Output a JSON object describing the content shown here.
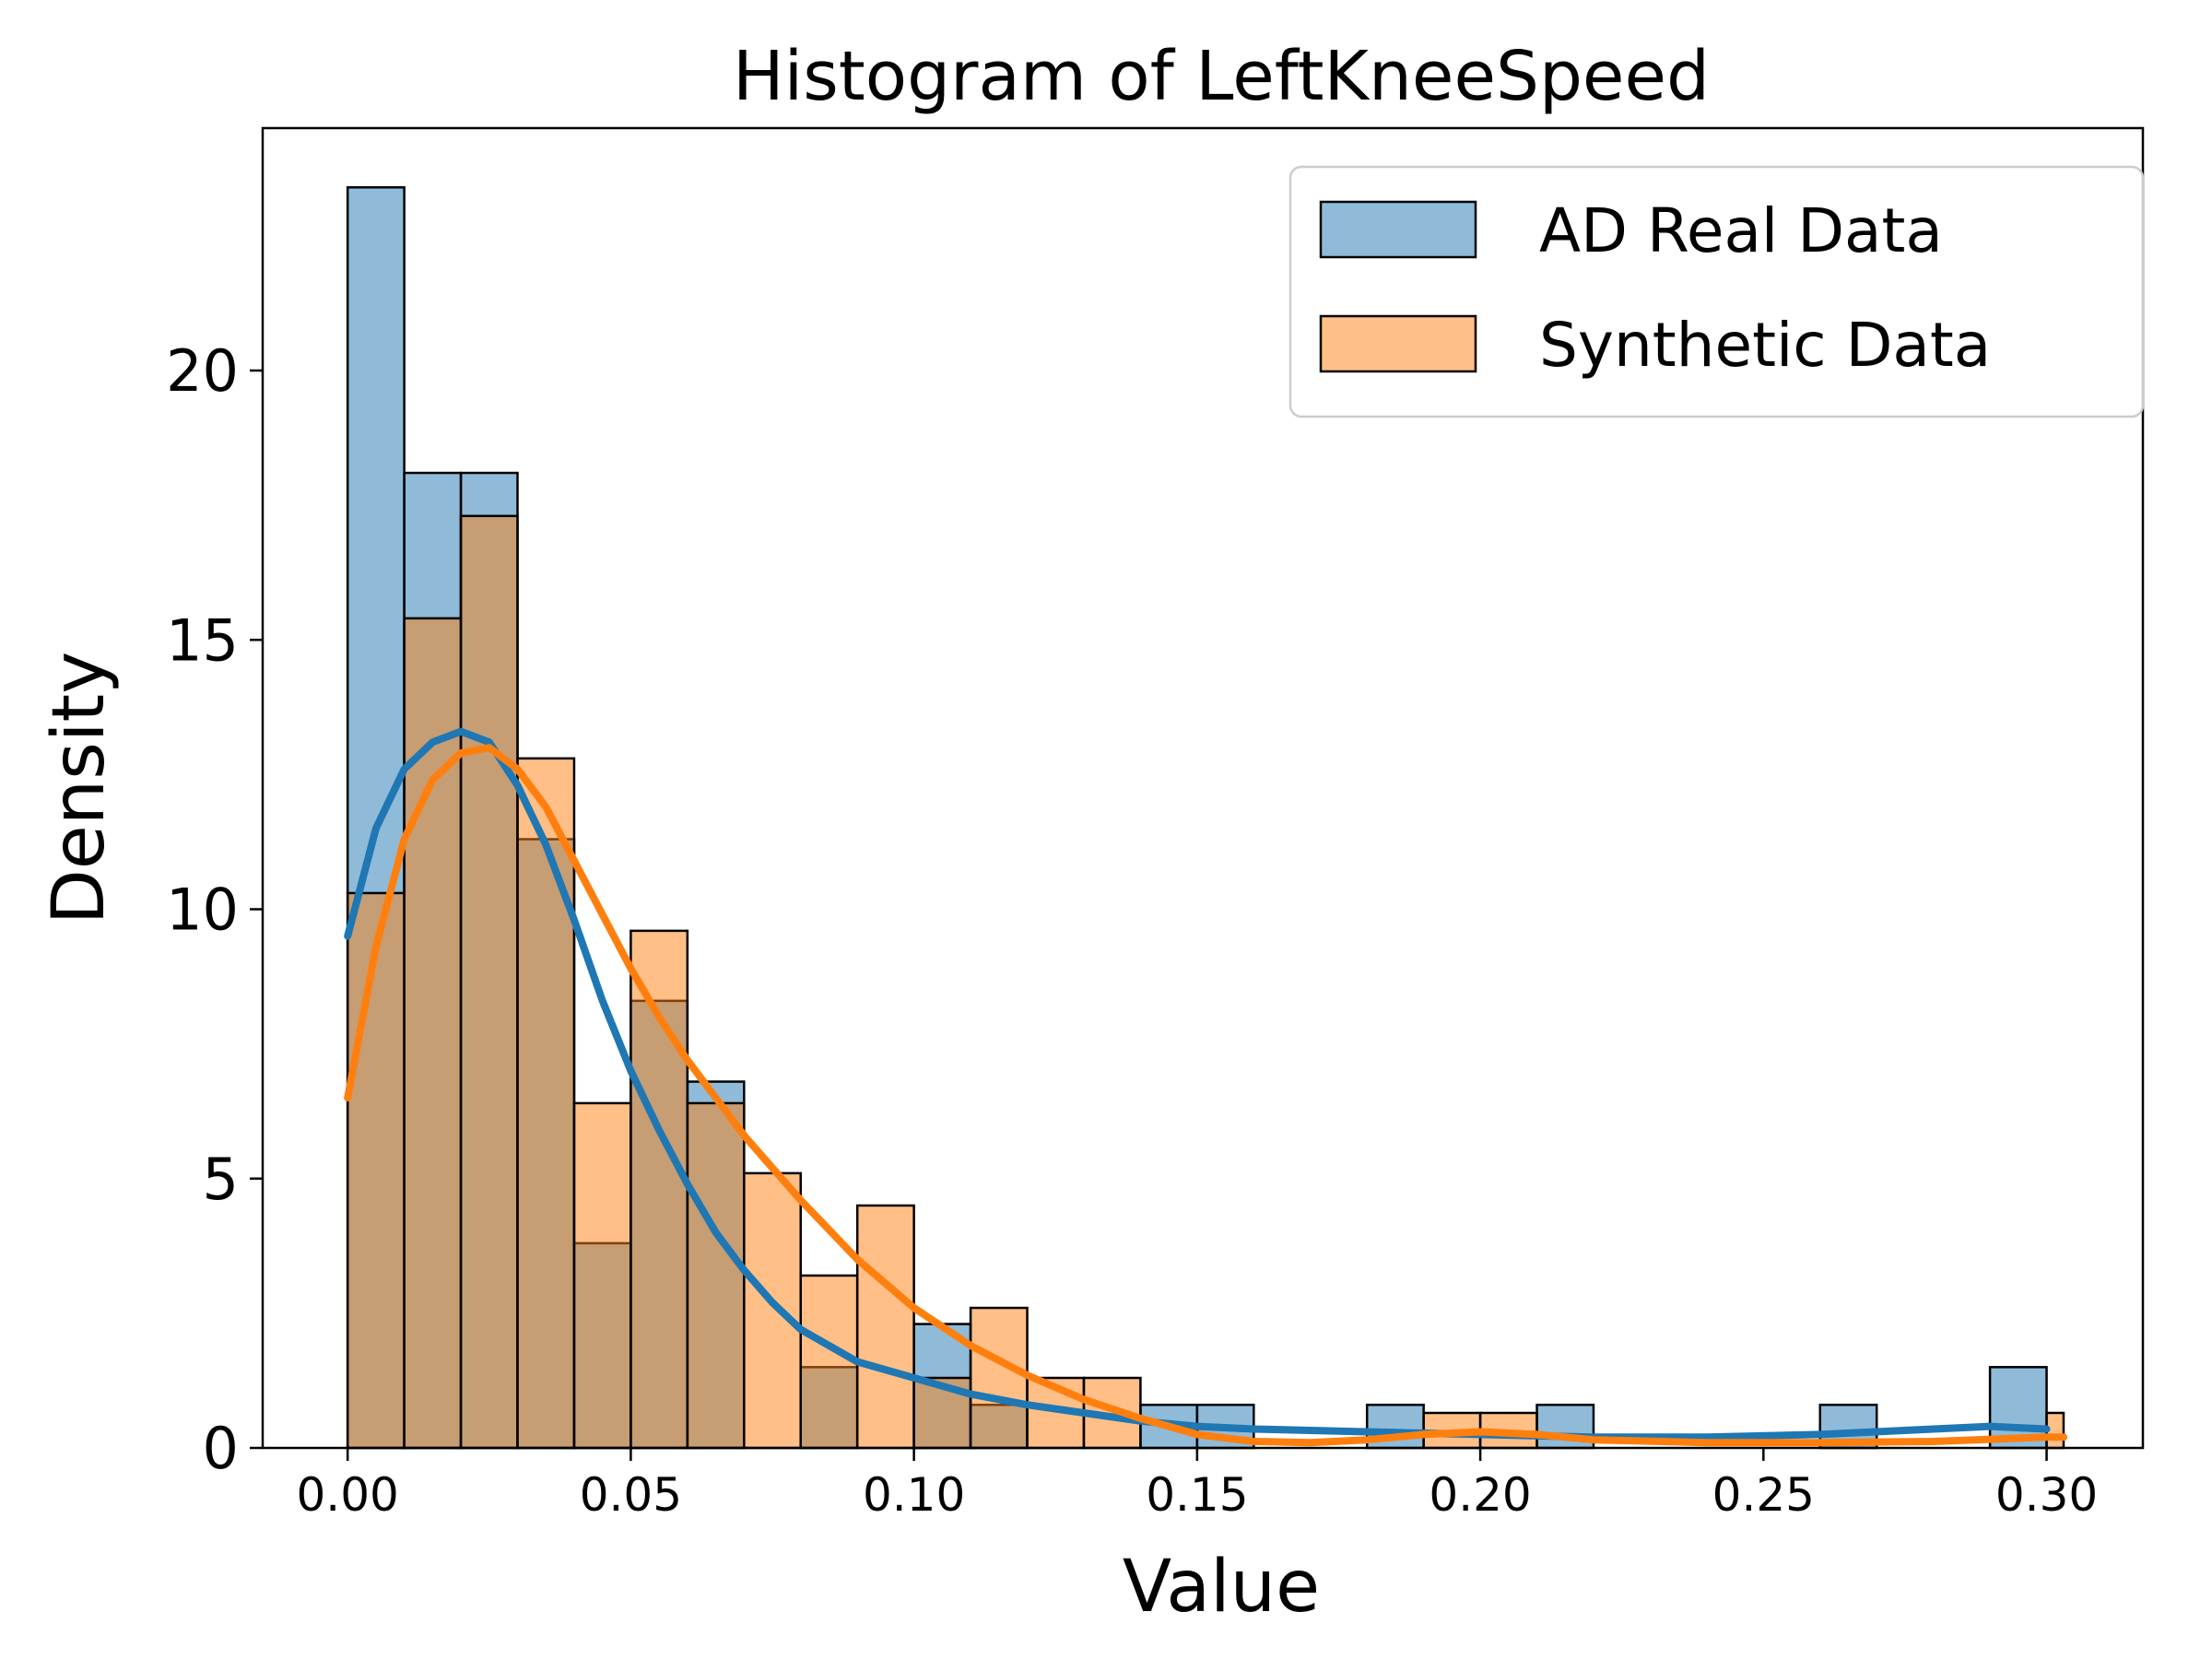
{
  "chart_data": {
    "type": "bar",
    "title": "Histogram of LeftKneeSpeed",
    "xlabel": "Value",
    "ylabel": "Density",
    "xlim": [
      -0.015,
      0.317
    ],
    "ylim": [
      0,
      24.5
    ],
    "xticks": [
      0.0,
      0.05,
      0.1,
      0.15,
      0.2,
      0.25,
      0.3
    ],
    "xtick_labels": [
      "0.00",
      "0.05",
      "0.10",
      "0.15",
      "0.20",
      "0.25",
      "0.30"
    ],
    "yticks": [
      0,
      5,
      10,
      15,
      20
    ],
    "ytick_labels": [
      "0",
      "5",
      "10",
      "15",
      "20"
    ],
    "grid": false,
    "legend_position": "top-right",
    "series": [
      {
        "name": "AD Real Data",
        "color": "#1f77b4",
        "bin_edges": [
          0.0,
          0.01,
          0.02,
          0.03,
          0.04,
          0.05,
          0.06,
          0.07,
          0.08,
          0.09,
          0.1,
          0.11,
          0.12,
          0.13,
          0.14,
          0.15,
          0.16,
          0.17,
          0.18,
          0.19,
          0.2,
          0.21,
          0.22,
          0.23,
          0.24,
          0.25,
          0.26,
          0.27,
          0.28,
          0.29,
          0.3
        ],
        "values": [
          23.4,
          18.1,
          18.1,
          11.3,
          3.8,
          8.3,
          6.8,
          0,
          1.5,
          0,
          2.3,
          0.8,
          0,
          0,
          0.8,
          0.8,
          0,
          0,
          0.8,
          0,
          0,
          0.8,
          0,
          0,
          0,
          0,
          0.8,
          0,
          0,
          1.5
        ],
        "kde": [
          [
            0.0,
            9.5
          ],
          [
            0.005,
            11.5
          ],
          [
            0.01,
            12.6
          ],
          [
            0.015,
            13.1
          ],
          [
            0.02,
            13.3
          ],
          [
            0.025,
            13.1
          ],
          [
            0.03,
            12.3
          ],
          [
            0.035,
            11.2
          ],
          [
            0.04,
            9.8
          ],
          [
            0.045,
            8.3
          ],
          [
            0.05,
            7.0
          ],
          [
            0.055,
            5.9
          ],
          [
            0.06,
            4.9
          ],
          [
            0.065,
            4.0
          ],
          [
            0.07,
            3.3
          ],
          [
            0.075,
            2.7
          ],
          [
            0.08,
            2.2
          ],
          [
            0.09,
            1.6
          ],
          [
            0.1,
            1.3
          ],
          [
            0.11,
            1.0
          ],
          [
            0.12,
            0.8
          ],
          [
            0.13,
            0.65
          ],
          [
            0.14,
            0.5
          ],
          [
            0.15,
            0.4
          ],
          [
            0.16,
            0.35
          ],
          [
            0.18,
            0.3
          ],
          [
            0.2,
            0.25
          ],
          [
            0.22,
            0.2
          ],
          [
            0.24,
            0.2
          ],
          [
            0.26,
            0.25
          ],
          [
            0.28,
            0.35
          ],
          [
            0.29,
            0.4
          ],
          [
            0.3,
            0.35
          ]
        ]
      },
      {
        "name": "Synthetic Data",
        "color": "#ff7f0e",
        "bin_edges": [
          0.0,
          0.01,
          0.02,
          0.03,
          0.04,
          0.05,
          0.06,
          0.07,
          0.08,
          0.09,
          0.1,
          0.11,
          0.12,
          0.13,
          0.14,
          0.15,
          0.16,
          0.17,
          0.18,
          0.19,
          0.2,
          0.21,
          0.22,
          0.23,
          0.24,
          0.25,
          0.26,
          0.27,
          0.28,
          0.29,
          0.3,
          0.303
        ],
        "values": [
          10.3,
          15.4,
          17.3,
          12.8,
          6.4,
          9.6,
          6.4,
          5.1,
          3.2,
          4.5,
          1.3,
          2.6,
          1.3,
          1.3,
          0,
          0,
          0,
          0,
          0,
          0.65,
          0.65,
          0,
          0,
          0,
          0,
          0,
          0,
          0,
          0,
          0,
          0.65
        ],
        "kde": [
          [
            0.0,
            6.5
          ],
          [
            0.005,
            9.3
          ],
          [
            0.01,
            11.3
          ],
          [
            0.015,
            12.4
          ],
          [
            0.02,
            12.9
          ],
          [
            0.025,
            13.0
          ],
          [
            0.03,
            12.6
          ],
          [
            0.035,
            11.9
          ],
          [
            0.04,
            10.9
          ],
          [
            0.045,
            9.9
          ],
          [
            0.05,
            8.9
          ],
          [
            0.055,
            8.0
          ],
          [
            0.06,
            7.2
          ],
          [
            0.065,
            6.5
          ],
          [
            0.07,
            5.8
          ],
          [
            0.075,
            5.2
          ],
          [
            0.08,
            4.6
          ],
          [
            0.09,
            3.5
          ],
          [
            0.1,
            2.6
          ],
          [
            0.11,
            1.9
          ],
          [
            0.12,
            1.35
          ],
          [
            0.13,
            0.9
          ],
          [
            0.14,
            0.55
          ],
          [
            0.15,
            0.25
          ],
          [
            0.16,
            0.12
          ],
          [
            0.17,
            0.1
          ],
          [
            0.18,
            0.15
          ],
          [
            0.19,
            0.25
          ],
          [
            0.2,
            0.3
          ],
          [
            0.21,
            0.25
          ],
          [
            0.22,
            0.15
          ],
          [
            0.24,
            0.1
          ],
          [
            0.26,
            0.1
          ],
          [
            0.28,
            0.12
          ],
          [
            0.3,
            0.2
          ],
          [
            0.303,
            0.2
          ]
        ]
      }
    ]
  }
}
